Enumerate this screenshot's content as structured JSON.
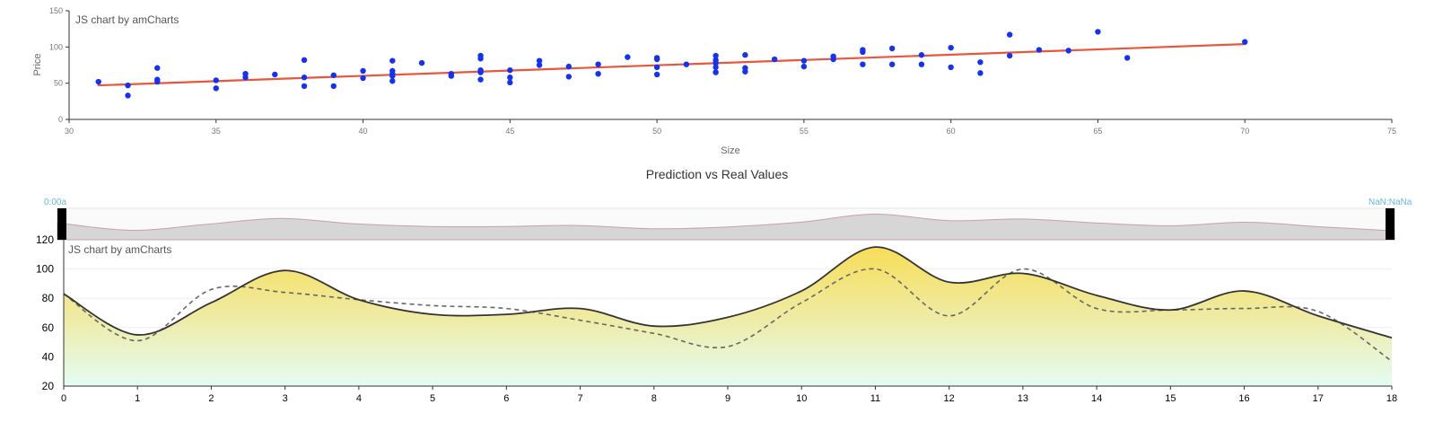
{
  "chart_data": [
    {
      "type": "scatter",
      "watermark": "JS chart by amCharts",
      "xlabel": "Size",
      "ylabel": "Price",
      "xlim": [
        30,
        75
      ],
      "ylim": [
        0,
        150
      ],
      "x_ticks": [
        "30",
        "35",
        "40",
        "45",
        "50",
        "55",
        "60",
        "65",
        "70",
        "75"
      ],
      "y_ticks": [
        "0",
        "50",
        "100",
        "150"
      ],
      "grid": false,
      "colors": {
        "points": "#1432f5",
        "trend": "#e8563b"
      },
      "trendline": {
        "x": [
          31,
          70
        ],
        "y": [
          47,
          104
        ]
      },
      "points": [
        [
          31,
          52
        ],
        [
          32,
          47
        ],
        [
          32,
          33
        ],
        [
          33,
          71
        ],
        [
          33,
          55
        ],
        [
          33,
          52
        ],
        [
          35,
          54
        ],
        [
          35,
          43
        ],
        [
          36,
          63
        ],
        [
          36,
          58
        ],
        [
          37,
          62
        ],
        [
          38,
          82
        ],
        [
          38,
          58
        ],
        [
          38,
          46
        ],
        [
          39,
          61
        ],
        [
          39,
          46
        ],
        [
          40,
          67
        ],
        [
          40,
          57
        ],
        [
          41,
          81
        ],
        [
          41,
          67
        ],
        [
          41,
          63
        ],
        [
          41,
          60
        ],
        [
          41,
          53
        ],
        [
          42,
          78
        ],
        [
          43,
          63
        ],
        [
          43,
          60
        ],
        [
          44,
          88
        ],
        [
          44,
          84
        ],
        [
          44,
          68
        ],
        [
          44,
          65
        ],
        [
          44,
          55
        ],
        [
          45,
          68
        ],
        [
          45,
          58
        ],
        [
          45,
          51
        ],
        [
          46,
          81
        ],
        [
          46,
          75
        ],
        [
          47,
          73
        ],
        [
          47,
          59
        ],
        [
          48,
          76
        ],
        [
          48,
          63
        ],
        [
          49,
          86
        ],
        [
          50,
          85
        ],
        [
          50,
          83
        ],
        [
          50,
          72
        ],
        [
          50,
          62
        ],
        [
          51,
          76
        ],
        [
          52,
          88
        ],
        [
          52,
          82
        ],
        [
          52,
          78
        ],
        [
          52,
          72
        ],
        [
          52,
          65
        ],
        [
          53,
          89
        ],
        [
          53,
          71
        ],
        [
          53,
          66
        ],
        [
          54,
          83
        ],
        [
          55,
          81
        ],
        [
          55,
          73
        ],
        [
          56,
          87
        ],
        [
          56,
          83
        ],
        [
          57,
          96
        ],
        [
          57,
          93
        ],
        [
          57,
          76
        ],
        [
          58,
          98
        ],
        [
          58,
          76
        ],
        [
          59,
          89
        ],
        [
          59,
          76
        ],
        [
          60,
          99
        ],
        [
          60,
          72
        ],
        [
          61,
          79
        ],
        [
          61,
          64
        ],
        [
          62,
          117
        ],
        [
          62,
          88
        ],
        [
          63,
          96
        ],
        [
          64,
          95
        ],
        [
          65,
          121
        ],
        [
          66,
          85
        ],
        [
          70,
          107
        ]
      ]
    },
    {
      "type": "area",
      "title": "Prediction vs Real Values",
      "watermark": "JS chart by amCharts",
      "scrollbar": {
        "start_label": "0:00a",
        "end_label": "NaN:NaNa"
      },
      "x": [
        0,
        1,
        2,
        3,
        4,
        5,
        6,
        7,
        8,
        9,
        10,
        11,
        12,
        13,
        14,
        15,
        16,
        17,
        18
      ],
      "x_ticks": [
        "0",
        "1",
        "2",
        "3",
        "4",
        "5",
        "6",
        "7",
        "8",
        "9",
        "10",
        "11",
        "12",
        "13",
        "14",
        "15",
        "16",
        "17",
        "18"
      ],
      "y_ticks": [
        "20",
        "40",
        "60",
        "80",
        "100",
        "120"
      ],
      "ylim": [
        20,
        120
      ],
      "colors": {
        "line": "#333333",
        "dashed": "#666666",
        "gradient_top": "#f7dd55",
        "gradient_bottom": "#e4fcf4"
      },
      "series": [
        {
          "values": [
            83,
            55,
            77,
            99,
            79,
            69,
            69,
            73,
            61,
            67,
            85,
            115,
            91,
            97,
            82,
            72,
            85,
            68,
            53
          ]
        },
        {
          "values": [
            83,
            51,
            86,
            84,
            79,
            75,
            73,
            65,
            56,
            47,
            77,
            100,
            68,
            100,
            73,
            72,
            73,
            71,
            37
          ]
        }
      ]
    }
  ]
}
